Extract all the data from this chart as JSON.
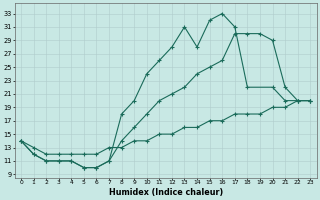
{
  "xlabel": "Humidex (Indice chaleur)",
  "bg_color": "#c8e8e4",
  "line_color": "#1a6b5a",
  "grid_color": "#b0cccc",
  "xlim": [
    -0.5,
    23.5
  ],
  "ylim": [
    8.5,
    34.5
  ],
  "xticks": [
    0,
    1,
    2,
    3,
    4,
    5,
    6,
    7,
    8,
    9,
    10,
    11,
    12,
    13,
    14,
    15,
    16,
    17,
    18,
    19,
    20,
    21,
    22,
    23
  ],
  "yticks": [
    9,
    11,
    13,
    15,
    17,
    19,
    21,
    23,
    25,
    27,
    29,
    31,
    33
  ],
  "curve1_x": [
    0,
    1,
    2,
    3,
    4,
    5,
    6,
    7,
    8,
    9,
    10,
    11,
    12,
    13,
    14,
    15,
    16,
    17,
    18,
    20,
    21,
    22,
    23
  ],
  "curve1_y": [
    14,
    12,
    11,
    11,
    11,
    10,
    10,
    11,
    18,
    20,
    24,
    26,
    28,
    31,
    28,
    32,
    33,
    31,
    22,
    22,
    20,
    20,
    20
  ],
  "curve2_x": [
    0,
    1,
    2,
    3,
    4,
    5,
    6,
    7,
    8,
    9,
    10,
    11,
    12,
    13,
    14,
    15,
    16,
    17,
    18,
    19,
    20,
    21,
    22,
    23
  ],
  "curve2_y": [
    14,
    12,
    11,
    11,
    11,
    10,
    10,
    11,
    14,
    16,
    18,
    20,
    21,
    22,
    24,
    25,
    26,
    30,
    30,
    30,
    29,
    22,
    20,
    20
  ],
  "curve3_x": [
    0,
    1,
    2,
    3,
    4,
    5,
    6,
    7,
    8,
    9,
    10,
    11,
    12,
    13,
    14,
    15,
    16,
    17,
    18,
    19,
    20,
    21,
    22,
    23
  ],
  "curve3_y": [
    14,
    13,
    12,
    12,
    12,
    12,
    12,
    13,
    13,
    14,
    14,
    15,
    15,
    16,
    16,
    17,
    17,
    18,
    18,
    18,
    19,
    19,
    20,
    20
  ]
}
